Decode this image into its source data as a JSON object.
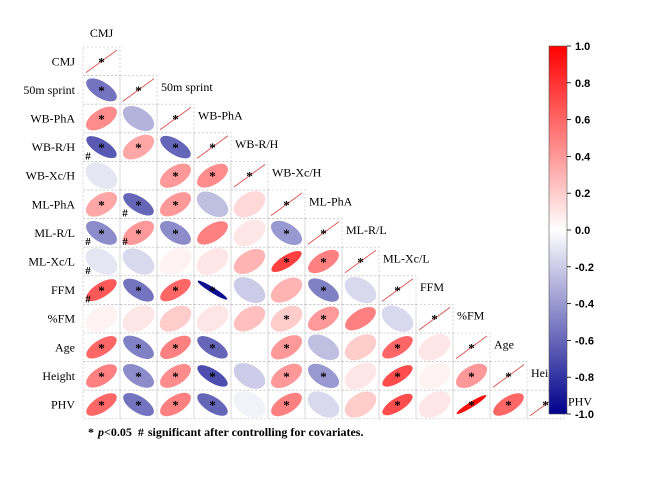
{
  "chart_data": {
    "type": "heatmap",
    "subtype": "correlation-ellipse-lower-triangle",
    "variables": [
      "CMJ",
      "50m sprint",
      "WB-PhA",
      "WB-R/H",
      "WB-Xc/H",
      "ML-PhA",
      "ML-R/L",
      "ML-Xc/L",
      "FFM",
      "%FM",
      "Age",
      "Height",
      "PHV"
    ],
    "correlations": [
      [],
      [
        -0.55
      ],
      [
        0.45,
        -0.3
      ],
      [
        -0.65,
        0.35,
        -0.6
      ],
      [
        -0.1,
        0.0,
        0.4,
        0.45
      ],
      [
        0.35,
        -0.6,
        0.4,
        -0.25,
        0.15
      ],
      [
        -0.45,
        0.4,
        -0.45,
        0.5,
        0.1,
        -0.4
      ],
      [
        -0.1,
        -0.15,
        0.05,
        0.1,
        0.3,
        0.75,
        0.5
      ],
      [
        0.65,
        -0.55,
        0.6,
        -0.95,
        -0.2,
        0.3,
        -0.5,
        -0.15
      ],
      [
        0.05,
        0.1,
        0.2,
        0.1,
        0.25,
        0.2,
        0.4,
        0.5,
        -0.15
      ],
      [
        0.6,
        -0.5,
        0.5,
        -0.6,
        0.0,
        0.4,
        -0.25,
        0.2,
        0.6,
        0.1
      ],
      [
        0.5,
        -0.45,
        0.45,
        -0.7,
        -0.2,
        0.4,
        -0.4,
        0.1,
        0.7,
        0.05,
        0.4
      ],
      [
        0.6,
        -0.55,
        0.5,
        -0.6,
        -0.05,
        0.5,
        -0.15,
        0.2,
        0.7,
        0.1,
        0.95,
        0.6
      ]
    ],
    "significance_markers": [
      [],
      [
        "*"
      ],
      [
        "*",
        ""
      ],
      [
        "*#",
        "*",
        "*"
      ],
      [
        "",
        "",
        "*",
        "*"
      ],
      [
        "*",
        "*#",
        "*",
        "",
        ""
      ],
      [
        "*#",
        "*#",
        "*",
        "",
        "",
        "*"
      ],
      [
        "#",
        "",
        "",
        "",
        "",
        "*",
        "*"
      ],
      [
        "*#",
        "*",
        "*",
        "*",
        "",
        "",
        "*",
        ""
      ],
      [
        "",
        "",
        "",
        "",
        "",
        "*",
        "*",
        "",
        ""
      ],
      [
        "*",
        "*",
        "*",
        "*",
        "",
        "*",
        "",
        "",
        "*",
        ""
      ],
      [
        "*",
        "*",
        "*",
        "*",
        "",
        "*",
        "*",
        "",
        "*",
        "",
        "*"
      ],
      [
        "*",
        "*",
        "*",
        "*",
        "",
        "*",
        "",
        "",
        "*",
        "",
        "*",
        "*"
      ]
    ],
    "diagonal_marker": "*",
    "colorbar": {
      "min": -1.0,
      "max": 1.0,
      "ticks": [
        "1.0",
        "0.8",
        "0.6",
        "0.4",
        "0.2",
        "0.0",
        "-0.2",
        "-0.4",
        "-0.6",
        "-0.8",
        "-1.0"
      ],
      "colors": {
        "negative": "#00008b",
        "zero": "#ffffff",
        "positive": "#ff0000"
      }
    },
    "legend": {
      "star": "*",
      "p_label": "p",
      "threshold": "<0.05",
      "hash": "#",
      "hash_text": "significant after controlling for covariates."
    }
  }
}
